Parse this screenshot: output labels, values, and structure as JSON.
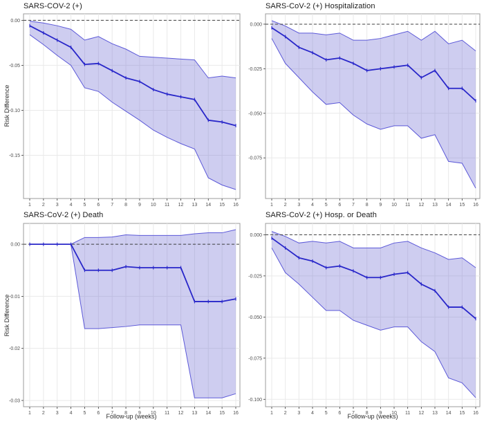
{
  "colors": {
    "line": "#2826c9",
    "band_fill": "#6f6cd4",
    "band_fill_opacity": 0.34,
    "band_edge": "#5b58d8",
    "reference_line": "#3f3f3f",
    "grid": "#e9e9e9",
    "panel_border": "#9b9b9b",
    "axis_tick": "#333333",
    "tick_text": "#4d4d4d",
    "title_text": "#1a1a1a"
  },
  "chart_data": [
    {
      "type": "line",
      "position": "top-left",
      "title": "SARS-COV-2 (+)",
      "xlabel": "",
      "ylabel": "Risk Difference",
      "x": [
        1,
        2,
        3,
        4,
        5,
        6,
        7,
        8,
        9,
        10,
        11,
        12,
        13,
        14,
        15,
        16
      ],
      "xtick_labels": [
        "1",
        "2",
        "3",
        "4",
        "5",
        "6",
        "7",
        "8",
        "9",
        "10",
        "11",
        "12",
        "13",
        "14",
        "15",
        "16"
      ],
      "series": [
        {
          "name": "estimate",
          "values": [
            -0.006,
            -0.014,
            -0.022,
            -0.03,
            -0.049,
            -0.048,
            -0.056,
            -0.064,
            -0.068,
            -0.077,
            -0.082,
            -0.085,
            -0.088,
            -0.111,
            -0.113,
            -0.117
          ]
        },
        {
          "name": "upper_ci",
          "values": [
            -0.001,
            -0.003,
            -0.006,
            -0.01,
            -0.022,
            -0.018,
            -0.026,
            -0.032,
            -0.04,
            -0.041,
            -0.042,
            -0.043,
            -0.044,
            -0.064,
            -0.062,
            -0.064
          ]
        },
        {
          "name": "lower_ci",
          "values": [
            -0.016,
            -0.027,
            -0.039,
            -0.05,
            -0.075,
            -0.079,
            -0.091,
            -0.101,
            -0.111,
            -0.122,
            -0.13,
            -0.137,
            -0.143,
            -0.175,
            -0.183,
            -0.188
          ]
        }
      ],
      "yticks": [
        0,
        -0.05,
        -0.1,
        -0.15
      ],
      "ytick_labels": [
        "0.00",
        "-0.05",
        "-0.10",
        "-0.15"
      ],
      "ylim": [
        -0.198,
        0.0072
      ],
      "reference_line_y": 0,
      "grid": true,
      "legend": "none"
    },
    {
      "type": "line",
      "position": "top-right",
      "title": "SARS-CoV-2 (+) Hospitalization",
      "xlabel": "",
      "ylabel": "",
      "x": [
        1,
        2,
        3,
        4,
        5,
        6,
        7,
        8,
        9,
        10,
        11,
        12,
        13,
        14,
        15,
        16
      ],
      "xtick_labels": [
        "1",
        "2",
        "3",
        "4",
        "5",
        "6",
        "7",
        "8",
        "9",
        "10",
        "11",
        "12",
        "13",
        "14",
        "15",
        "16"
      ],
      "series": [
        {
          "name": "estimate",
          "values": [
            -0.002,
            -0.007,
            -0.013,
            -0.016,
            -0.02,
            -0.019,
            -0.022,
            -0.026,
            -0.025,
            -0.024,
            -0.023,
            -0.03,
            -0.026,
            -0.036,
            -0.036,
            -0.043
          ]
        },
        {
          "name": "upper_ci",
          "values": [
            0.002,
            -0.001,
            -0.005,
            -0.005,
            -0.006,
            -0.005,
            -0.009,
            -0.009,
            -0.008,
            -0.006,
            -0.004,
            -0.009,
            -0.004,
            -0.011,
            -0.009,
            -0.015
          ]
        },
        {
          "name": "lower_ci",
          "values": [
            -0.008,
            -0.022,
            -0.03,
            -0.038,
            -0.045,
            -0.044,
            -0.051,
            -0.056,
            -0.059,
            -0.057,
            -0.057,
            -0.064,
            -0.062,
            -0.077,
            -0.078,
            -0.092
          ]
        }
      ],
      "yticks": [
        0,
        -0.025,
        -0.05,
        -0.075
      ],
      "ytick_labels": [
        "0.000",
        "-0.025",
        "-0.050",
        "-0.075"
      ],
      "ylim": [
        -0.0978,
        0.0058
      ],
      "reference_line_y": 0,
      "grid": true,
      "legend": "none"
    },
    {
      "type": "line",
      "position": "bottom-left",
      "title": "SARS-CoV-2 (+) Death",
      "xlabel": "Follow-up (weeks)",
      "ylabel": "Risk Difference",
      "x": [
        1,
        2,
        3,
        4,
        5,
        6,
        7,
        8,
        9,
        10,
        11,
        12,
        13,
        14,
        15,
        16
      ],
      "xtick_labels": [
        "1",
        "2",
        "3",
        "4",
        "5",
        "6",
        "7",
        "8",
        "9",
        "10",
        "11",
        "12",
        "13",
        "14",
        "15",
        "16"
      ],
      "series": [
        {
          "name": "estimate",
          "values": [
            0,
            0,
            0,
            0,
            -0.005,
            -0.005,
            -0.005,
            -0.0043,
            -0.0045,
            -0.0045,
            -0.0045,
            -0.0045,
            -0.011,
            -0.011,
            -0.011,
            -0.0105
          ]
        },
        {
          "name": "upper_ci",
          "values": [
            0,
            0,
            0,
            0,
            0.0013,
            0.0013,
            0.0014,
            0.0018,
            0.0017,
            0.0017,
            0.0017,
            0.0017,
            0.002,
            0.0022,
            0.0022,
            0.0028
          ]
        },
        {
          "name": "lower_ci",
          "values": [
            0,
            0,
            0,
            0,
            -0.0162,
            -0.0162,
            -0.016,
            -0.0158,
            -0.0155,
            -0.0155,
            -0.0155,
            -0.0155,
            -0.0295,
            -0.0295,
            -0.0295,
            -0.0287
          ]
        }
      ],
      "yticks": [
        0,
        -0.01,
        -0.02,
        -0.03
      ],
      "ytick_labels": [
        "0.00",
        "-0.01",
        "-0.02",
        "-0.03"
      ],
      "ylim": [
        -0.0312,
        0.004
      ],
      "reference_line_y": 0,
      "grid": true,
      "legend": "none"
    },
    {
      "type": "line",
      "position": "bottom-right",
      "title": "SARS-CoV-2 (+) Hosp. or Death",
      "xlabel": "Follow-up (weeks)",
      "ylabel": "",
      "x": [
        1,
        2,
        3,
        4,
        5,
        6,
        7,
        8,
        9,
        10,
        11,
        12,
        13,
        14,
        15,
        16
      ],
      "xtick_labels": [
        "1",
        "2",
        "3",
        "4",
        "5",
        "6",
        "7",
        "8",
        "9",
        "10",
        "11",
        "12",
        "13",
        "14",
        "15",
        "16"
      ],
      "series": [
        {
          "name": "estimate",
          "values": [
            -0.002,
            -0.008,
            -0.014,
            -0.016,
            -0.02,
            -0.019,
            -0.022,
            -0.026,
            -0.026,
            -0.024,
            -0.023,
            -0.03,
            -0.034,
            -0.044,
            -0.044,
            -0.051
          ]
        },
        {
          "name": "upper_ci",
          "values": [
            0.002,
            -0.001,
            -0.005,
            -0.004,
            -0.005,
            -0.004,
            -0.008,
            -0.008,
            -0.008,
            -0.005,
            -0.004,
            -0.008,
            -0.011,
            -0.015,
            -0.014,
            -0.02
          ]
        },
        {
          "name": "lower_ci",
          "values": [
            -0.008,
            -0.023,
            -0.03,
            -0.038,
            -0.046,
            -0.046,
            -0.052,
            -0.055,
            -0.058,
            -0.056,
            -0.056,
            -0.065,
            -0.071,
            -0.087,
            -0.09,
            -0.099
          ]
        }
      ],
      "yticks": [
        0,
        -0.025,
        -0.05,
        -0.075,
        -0.1
      ],
      "ytick_labels": [
        "0.000",
        "-0.025",
        "-0.050",
        "-0.075",
        "-0.100"
      ],
      "ylim": [
        -0.1045,
        0.0069
      ],
      "reference_line_y": 0,
      "grid": true,
      "legend": "none"
    }
  ]
}
